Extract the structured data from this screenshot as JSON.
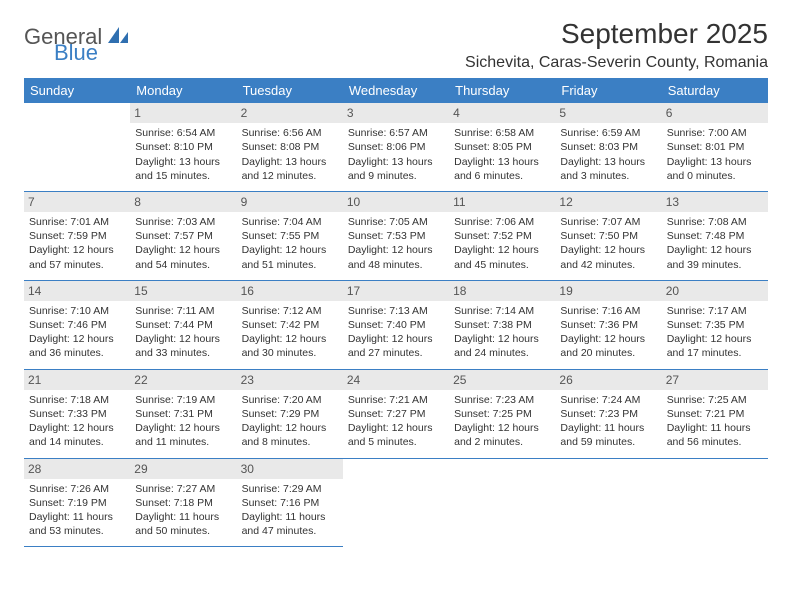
{
  "brand": {
    "top": "General",
    "bottom": "Blue",
    "icon_color": "#2f6fb0"
  },
  "title": "September 2025",
  "location": "Sichevita, Caras-Severin County, Romania",
  "colors": {
    "header_bg": "#3b7fc4",
    "header_text": "#ffffff",
    "daynum_bg": "#e9e9e9",
    "daynum_text": "#555555",
    "cell_border": "#3b7fc4",
    "body_text": "#333333"
  },
  "weekdays": [
    "Sunday",
    "Monday",
    "Tuesday",
    "Wednesday",
    "Thursday",
    "Friday",
    "Saturday"
  ],
  "weeks": [
    [
      {
        "n": "",
        "l1": "",
        "l2": "",
        "l3": "",
        "l4": ""
      },
      {
        "n": "1",
        "l1": "Sunrise: 6:54 AM",
        "l2": "Sunset: 8:10 PM",
        "l3": "Daylight: 13 hours",
        "l4": "and 15 minutes."
      },
      {
        "n": "2",
        "l1": "Sunrise: 6:56 AM",
        "l2": "Sunset: 8:08 PM",
        "l3": "Daylight: 13 hours",
        "l4": "and 12 minutes."
      },
      {
        "n": "3",
        "l1": "Sunrise: 6:57 AM",
        "l2": "Sunset: 8:06 PM",
        "l3": "Daylight: 13 hours",
        "l4": "and 9 minutes."
      },
      {
        "n": "4",
        "l1": "Sunrise: 6:58 AM",
        "l2": "Sunset: 8:05 PM",
        "l3": "Daylight: 13 hours",
        "l4": "and 6 minutes."
      },
      {
        "n": "5",
        "l1": "Sunrise: 6:59 AM",
        "l2": "Sunset: 8:03 PM",
        "l3": "Daylight: 13 hours",
        "l4": "and 3 minutes."
      },
      {
        "n": "6",
        "l1": "Sunrise: 7:00 AM",
        "l2": "Sunset: 8:01 PM",
        "l3": "Daylight: 13 hours",
        "l4": "and 0 minutes."
      }
    ],
    [
      {
        "n": "7",
        "l1": "Sunrise: 7:01 AM",
        "l2": "Sunset: 7:59 PM",
        "l3": "Daylight: 12 hours",
        "l4": "and 57 minutes."
      },
      {
        "n": "8",
        "l1": "Sunrise: 7:03 AM",
        "l2": "Sunset: 7:57 PM",
        "l3": "Daylight: 12 hours",
        "l4": "and 54 minutes."
      },
      {
        "n": "9",
        "l1": "Sunrise: 7:04 AM",
        "l2": "Sunset: 7:55 PM",
        "l3": "Daylight: 12 hours",
        "l4": "and 51 minutes."
      },
      {
        "n": "10",
        "l1": "Sunrise: 7:05 AM",
        "l2": "Sunset: 7:53 PM",
        "l3": "Daylight: 12 hours",
        "l4": "and 48 minutes."
      },
      {
        "n": "11",
        "l1": "Sunrise: 7:06 AM",
        "l2": "Sunset: 7:52 PM",
        "l3": "Daylight: 12 hours",
        "l4": "and 45 minutes."
      },
      {
        "n": "12",
        "l1": "Sunrise: 7:07 AM",
        "l2": "Sunset: 7:50 PM",
        "l3": "Daylight: 12 hours",
        "l4": "and 42 minutes."
      },
      {
        "n": "13",
        "l1": "Sunrise: 7:08 AM",
        "l2": "Sunset: 7:48 PM",
        "l3": "Daylight: 12 hours",
        "l4": "and 39 minutes."
      }
    ],
    [
      {
        "n": "14",
        "l1": "Sunrise: 7:10 AM",
        "l2": "Sunset: 7:46 PM",
        "l3": "Daylight: 12 hours",
        "l4": "and 36 minutes."
      },
      {
        "n": "15",
        "l1": "Sunrise: 7:11 AM",
        "l2": "Sunset: 7:44 PM",
        "l3": "Daylight: 12 hours",
        "l4": "and 33 minutes."
      },
      {
        "n": "16",
        "l1": "Sunrise: 7:12 AM",
        "l2": "Sunset: 7:42 PM",
        "l3": "Daylight: 12 hours",
        "l4": "and 30 minutes."
      },
      {
        "n": "17",
        "l1": "Sunrise: 7:13 AM",
        "l2": "Sunset: 7:40 PM",
        "l3": "Daylight: 12 hours",
        "l4": "and 27 minutes."
      },
      {
        "n": "18",
        "l1": "Sunrise: 7:14 AM",
        "l2": "Sunset: 7:38 PM",
        "l3": "Daylight: 12 hours",
        "l4": "and 24 minutes."
      },
      {
        "n": "19",
        "l1": "Sunrise: 7:16 AM",
        "l2": "Sunset: 7:36 PM",
        "l3": "Daylight: 12 hours",
        "l4": "and 20 minutes."
      },
      {
        "n": "20",
        "l1": "Sunrise: 7:17 AM",
        "l2": "Sunset: 7:35 PM",
        "l3": "Daylight: 12 hours",
        "l4": "and 17 minutes."
      }
    ],
    [
      {
        "n": "21",
        "l1": "Sunrise: 7:18 AM",
        "l2": "Sunset: 7:33 PM",
        "l3": "Daylight: 12 hours",
        "l4": "and 14 minutes."
      },
      {
        "n": "22",
        "l1": "Sunrise: 7:19 AM",
        "l2": "Sunset: 7:31 PM",
        "l3": "Daylight: 12 hours",
        "l4": "and 11 minutes."
      },
      {
        "n": "23",
        "l1": "Sunrise: 7:20 AM",
        "l2": "Sunset: 7:29 PM",
        "l3": "Daylight: 12 hours",
        "l4": "and 8 minutes."
      },
      {
        "n": "24",
        "l1": "Sunrise: 7:21 AM",
        "l2": "Sunset: 7:27 PM",
        "l3": "Daylight: 12 hours",
        "l4": "and 5 minutes."
      },
      {
        "n": "25",
        "l1": "Sunrise: 7:23 AM",
        "l2": "Sunset: 7:25 PM",
        "l3": "Daylight: 12 hours",
        "l4": "and 2 minutes."
      },
      {
        "n": "26",
        "l1": "Sunrise: 7:24 AM",
        "l2": "Sunset: 7:23 PM",
        "l3": "Daylight: 11 hours",
        "l4": "and 59 minutes."
      },
      {
        "n": "27",
        "l1": "Sunrise: 7:25 AM",
        "l2": "Sunset: 7:21 PM",
        "l3": "Daylight: 11 hours",
        "l4": "and 56 minutes."
      }
    ],
    [
      {
        "n": "28",
        "l1": "Sunrise: 7:26 AM",
        "l2": "Sunset: 7:19 PM",
        "l3": "Daylight: 11 hours",
        "l4": "and 53 minutes."
      },
      {
        "n": "29",
        "l1": "Sunrise: 7:27 AM",
        "l2": "Sunset: 7:18 PM",
        "l3": "Daylight: 11 hours",
        "l4": "and 50 minutes."
      },
      {
        "n": "30",
        "l1": "Sunrise: 7:29 AM",
        "l2": "Sunset: 7:16 PM",
        "l3": "Daylight: 11 hours",
        "l4": "and 47 minutes."
      },
      {
        "n": "",
        "l1": "",
        "l2": "",
        "l3": "",
        "l4": ""
      },
      {
        "n": "",
        "l1": "",
        "l2": "",
        "l3": "",
        "l4": ""
      },
      {
        "n": "",
        "l1": "",
        "l2": "",
        "l3": "",
        "l4": ""
      },
      {
        "n": "",
        "l1": "",
        "l2": "",
        "l3": "",
        "l4": ""
      }
    ]
  ]
}
